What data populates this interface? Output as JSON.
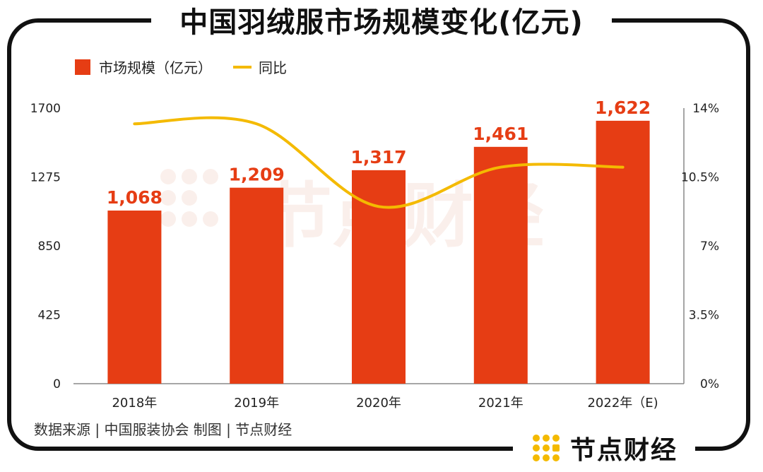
{
  "title": "中国羽绒服市场规模变化(亿元)",
  "source": "数据来源 | 中国服装协会  制图 | 节点财经",
  "brand": {
    "name": "节点财经",
    "watermark": "节点财经"
  },
  "colors": {
    "bar": "#E63D14",
    "line": "#F4BA00",
    "label": "#E63D14",
    "watermark": "#F7E3DC"
  },
  "chart_data": {
    "type": "bar",
    "categories": [
      "2018年",
      "2019年",
      "2020年",
      "2021年",
      "2022年（E)"
    ],
    "series": [
      {
        "name": "市场规模（亿元）",
        "type": "bar",
        "axis": "left",
        "values": [
          1068,
          1209,
          1317,
          1461,
          1622
        ],
        "labels": [
          "1,068",
          "1,209",
          "1,317",
          "1,461",
          "1,622"
        ]
      },
      {
        "name": "同比",
        "type": "line",
        "axis": "right",
        "values": [
          13.2,
          13.2,
          9.0,
          11.0,
          11.0
        ]
      }
    ],
    "y_left": {
      "min": 0,
      "max": 1700,
      "ticks": [
        0,
        425,
        850,
        1275,
        1700
      ],
      "tick_labels": [
        "0",
        "425",
        "850",
        "1275",
        "1700"
      ]
    },
    "y_right": {
      "min": 0,
      "max": 14,
      "ticks": [
        0,
        3.5,
        7,
        10.5,
        14
      ],
      "tick_labels": [
        "0%",
        "3.5%",
        "7%",
        "10.5%",
        "14%"
      ]
    },
    "legend": {
      "position": "top-left"
    },
    "grid": false
  }
}
